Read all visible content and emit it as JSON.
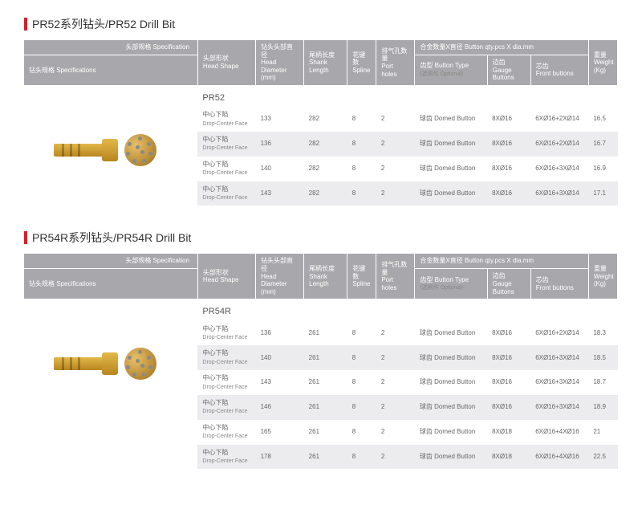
{
  "sections": [
    {
      "title": "PR52系列钻头/PR52 Drill Bit",
      "model": "PR52",
      "rows": [
        {
          "shape_cn": "中心下陷",
          "shape_en": "Drop-Center Face",
          "dia": "133",
          "shank": "282",
          "spline": "8",
          "port": "2",
          "btn_type": "球齿 Domed Button",
          "gauge": "8XØ16",
          "front": "6XØ16+2XØ14",
          "wt": "16.5"
        },
        {
          "shape_cn": "中心下陷",
          "shape_en": "Drop-Center Face",
          "dia": "136",
          "shank": "282",
          "spline": "8",
          "port": "2",
          "btn_type": "球齿 Domed Button",
          "gauge": "8XØ16",
          "front": "6XØ16+2XØ14",
          "wt": "16.7"
        },
        {
          "shape_cn": "中心下陷",
          "shape_en": "Drop-Center Face",
          "dia": "140",
          "shank": "282",
          "spline": "8",
          "port": "2",
          "btn_type": "球齿 Domed Button",
          "gauge": "8XØ16",
          "front": "6XØ16+3XØ14",
          "wt": "16.9"
        },
        {
          "shape_cn": "中心下陷",
          "shape_en": "Drop-Center Face",
          "dia": "143",
          "shank": "282",
          "spline": "8",
          "port": "2",
          "btn_type": "球齿 Domed Button",
          "gauge": "8XØ16",
          "front": "6XØ16+3XØ14",
          "wt": "17.1"
        }
      ]
    },
    {
      "title": "PR54R系列钻头/PR54R Drill Bit",
      "model": "PR54R",
      "rows": [
        {
          "shape_cn": "中心下陷",
          "shape_en": "Drop-Center Face",
          "dia": "136",
          "shank": "261",
          "spline": "8",
          "port": "2",
          "btn_type": "球齿 Domed Button",
          "gauge": "8XØ16",
          "front": "6XØ16+2XØ14",
          "wt": "18.3"
        },
        {
          "shape_cn": "中心下陷",
          "shape_en": "Drop-Center Face",
          "dia": "140",
          "shank": "261",
          "spline": "8",
          "port": "2",
          "btn_type": "球齿 Domed Button",
          "gauge": "8XØ16",
          "front": "6XØ16+3XØ14",
          "wt": "18.5"
        },
        {
          "shape_cn": "中心下陷",
          "shape_en": "Drop-Center Face",
          "dia": "143",
          "shank": "261",
          "spline": "8",
          "port": "2",
          "btn_type": "球齿 Domed Button",
          "gauge": "8XØ16",
          "front": "6XØ16+3XØ14",
          "wt": "18.7"
        },
        {
          "shape_cn": "中心下陷",
          "shape_en": "Drop-Center Face",
          "dia": "146",
          "shank": "261",
          "spline": "8",
          "port": "2",
          "btn_type": "球齿 Domed Button",
          "gauge": "8XØ16",
          "front": "6XØ16+3XØ14",
          "wt": "18.9"
        },
        {
          "shape_cn": "中心下陷",
          "shape_en": "Drop-Center Face",
          "dia": "165",
          "shank": "261",
          "spline": "8",
          "port": "2",
          "btn_type": "球齿 Domed Button",
          "gauge": "8XØ18",
          "front": "6XØ16+4XØ16",
          "wt": "21"
        },
        {
          "shape_cn": "中心下陷",
          "shape_en": "Drop-Center Face",
          "dia": "178",
          "shank": "261",
          "spline": "8",
          "port": "2",
          "btn_type": "球齿 Domed Button",
          "gauge": "8XØ18",
          "front": "6XØ16+4XØ16",
          "wt": "22.5"
        }
      ]
    }
  ],
  "headers": {
    "spec_top": "头部规格 Specification",
    "spec_bottom": "钻头规格 Specifications",
    "head_shape_cn": "头部形状",
    "head_shape_en": "Head Shape",
    "head_dia_cn": "钻头头部直径",
    "head_dia_en": "Head Diameter (mm)",
    "shank_cn": "尾柄长度",
    "shank_en": "Shank Length",
    "spline_cn": "花键数",
    "spline_en": "Spline",
    "port_cn": "排气孔数量",
    "port_en": "Port holes",
    "alloy_group": "合金数量X直径 Button qty.pcs X dia.mm",
    "btn_type_cn": "齿型 Button Type",
    "btn_type_en": "(选购件 Optional)",
    "gauge_cn": "边齿",
    "gauge_en": "Gauge Buttons",
    "front_cn": "芯齿",
    "front_en": "Front buttons",
    "wt_cn": "重量",
    "wt_en": "Weight (Kg)"
  },
  "colors": {
    "accent": "#d32029",
    "header_bg": "#a8a8ac",
    "row_alt": "#ececee"
  },
  "col_widths": [
    "60",
    "50",
    "45",
    "30",
    "40",
    "75",
    "45",
    "60",
    "30"
  ]
}
